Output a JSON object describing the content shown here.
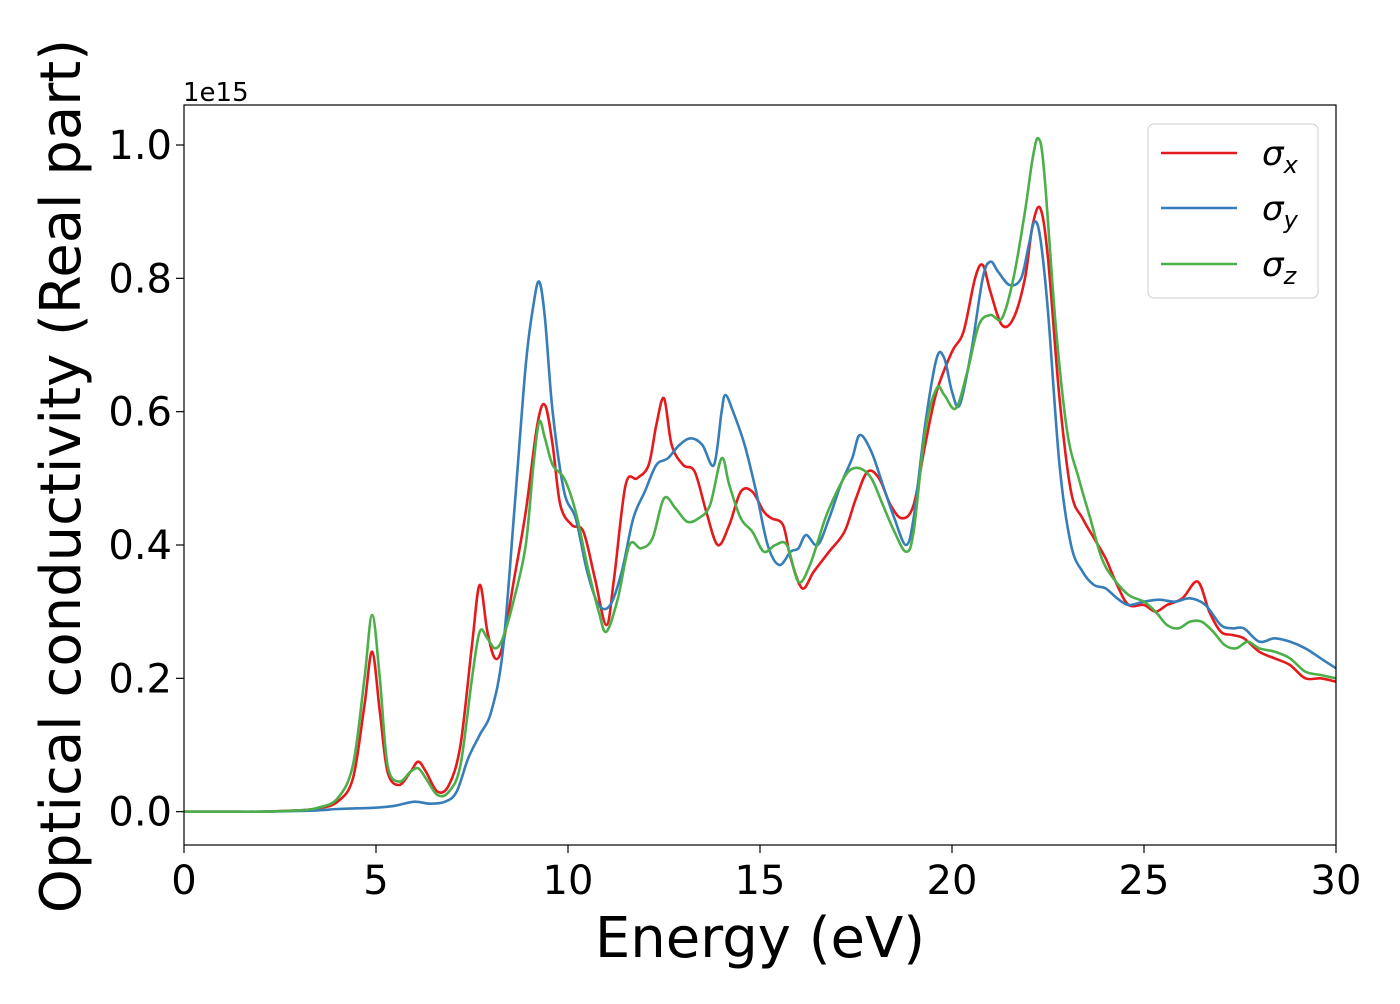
{
  "chart_data": {
    "type": "line",
    "xlabel": "Energy (eV)",
    "ylabel": "Optical conductivity (Real part)",
    "offset_text": "1e15",
    "xlim": [
      0,
      30
    ],
    "ylim": [
      -0.05,
      1.06
    ],
    "x_ticks": [
      {
        "value": 0,
        "label": "0"
      },
      {
        "value": 5,
        "label": "5"
      },
      {
        "value": 10,
        "label": "10"
      },
      {
        "value": 15,
        "label": "15"
      },
      {
        "value": 20,
        "label": "20"
      },
      {
        "value": 25,
        "label": "25"
      },
      {
        "value": 30,
        "label": "30"
      }
    ],
    "y_ticks": [
      {
        "value": 0.0,
        "label": "0.0"
      },
      {
        "value": 0.2,
        "label": "0.2"
      },
      {
        "value": 0.4,
        "label": "0.4"
      },
      {
        "value": 0.6,
        "label": "0.6"
      },
      {
        "value": 0.8,
        "label": "0.8"
      },
      {
        "value": 1.0,
        "label": "1.0"
      }
    ],
    "grid": false,
    "legend_position": "top-right",
    "series": [
      {
        "name": "σx",
        "legend_symbol": "σ",
        "legend_subscript": "x",
        "color": "#e41a1c",
        "points": [
          [
            0,
            0.0
          ],
          [
            1,
            0.0
          ],
          [
            2,
            0.0
          ],
          [
            3,
            0.002
          ],
          [
            3.5,
            0.005
          ],
          [
            4,
            0.015
          ],
          [
            4.4,
            0.05
          ],
          [
            4.7,
            0.16
          ],
          [
            4.9,
            0.24
          ],
          [
            5.1,
            0.15
          ],
          [
            5.3,
            0.06
          ],
          [
            5.6,
            0.04
          ],
          [
            5.9,
            0.06
          ],
          [
            6.1,
            0.075
          ],
          [
            6.3,
            0.06
          ],
          [
            6.6,
            0.03
          ],
          [
            6.9,
            0.04
          ],
          [
            7.2,
            0.1
          ],
          [
            7.5,
            0.25
          ],
          [
            7.7,
            0.34
          ],
          [
            7.9,
            0.27
          ],
          [
            8.1,
            0.23
          ],
          [
            8.3,
            0.25
          ],
          [
            8.6,
            0.35
          ],
          [
            8.9,
            0.45
          ],
          [
            9.2,
            0.58
          ],
          [
            9.4,
            0.61
          ],
          [
            9.6,
            0.55
          ],
          [
            9.8,
            0.46
          ],
          [
            10.1,
            0.43
          ],
          [
            10.4,
            0.42
          ],
          [
            10.7,
            0.35
          ],
          [
            11.0,
            0.28
          ],
          [
            11.2,
            0.35
          ],
          [
            11.5,
            0.49
          ],
          [
            11.8,
            0.5
          ],
          [
            12.1,
            0.52
          ],
          [
            12.3,
            0.58
          ],
          [
            12.5,
            0.62
          ],
          [
            12.7,
            0.55
          ],
          [
            13.0,
            0.52
          ],
          [
            13.3,
            0.51
          ],
          [
            13.6,
            0.45
          ],
          [
            13.9,
            0.4
          ],
          [
            14.2,
            0.43
          ],
          [
            14.5,
            0.48
          ],
          [
            14.8,
            0.48
          ],
          [
            15.1,
            0.45
          ],
          [
            15.3,
            0.44
          ],
          [
            15.6,
            0.43
          ],
          [
            15.8,
            0.38
          ],
          [
            16.1,
            0.335
          ],
          [
            16.4,
            0.36
          ],
          [
            16.8,
            0.39
          ],
          [
            17.2,
            0.42
          ],
          [
            17.5,
            0.47
          ],
          [
            17.8,
            0.51
          ],
          [
            18.1,
            0.5
          ],
          [
            18.4,
            0.46
          ],
          [
            18.7,
            0.44
          ],
          [
            19.0,
            0.46
          ],
          [
            19.3,
            0.55
          ],
          [
            19.6,
            0.63
          ],
          [
            20.0,
            0.69
          ],
          [
            20.3,
            0.72
          ],
          [
            20.6,
            0.8
          ],
          [
            20.8,
            0.82
          ],
          [
            21.0,
            0.78
          ],
          [
            21.3,
            0.73
          ],
          [
            21.6,
            0.74
          ],
          [
            21.9,
            0.8
          ],
          [
            22.1,
            0.88
          ],
          [
            22.3,
            0.905
          ],
          [
            22.5,
            0.83
          ],
          [
            22.8,
            0.62
          ],
          [
            23.1,
            0.48
          ],
          [
            23.4,
            0.44
          ],
          [
            23.7,
            0.41
          ],
          [
            24.0,
            0.38
          ],
          [
            24.3,
            0.34
          ],
          [
            24.6,
            0.31
          ],
          [
            25.0,
            0.31
          ],
          [
            25.3,
            0.3
          ],
          [
            25.6,
            0.31
          ],
          [
            26.0,
            0.32
          ],
          [
            26.4,
            0.345
          ],
          [
            26.7,
            0.3
          ],
          [
            27.0,
            0.27
          ],
          [
            27.3,
            0.265
          ],
          [
            27.6,
            0.26
          ],
          [
            28.0,
            0.24
          ],
          [
            28.4,
            0.23
          ],
          [
            28.8,
            0.22
          ],
          [
            29.2,
            0.2
          ],
          [
            29.6,
            0.2
          ],
          [
            30.0,
            0.195
          ]
        ]
      },
      {
        "name": "σy",
        "legend_symbol": "σ",
        "legend_subscript": "y",
        "color": "#377eb8",
        "points": [
          [
            0,
            0.0
          ],
          [
            1,
            0.0
          ],
          [
            2,
            0.0
          ],
          [
            3,
            0.001
          ],
          [
            3.5,
            0.002
          ],
          [
            4,
            0.004
          ],
          [
            4.5,
            0.005
          ],
          [
            5.0,
            0.006
          ],
          [
            5.5,
            0.009
          ],
          [
            6.0,
            0.015
          ],
          [
            6.4,
            0.012
          ],
          [
            6.8,
            0.015
          ],
          [
            7.1,
            0.03
          ],
          [
            7.4,
            0.08
          ],
          [
            7.7,
            0.115
          ],
          [
            8.0,
            0.15
          ],
          [
            8.3,
            0.24
          ],
          [
            8.6,
            0.45
          ],
          [
            8.9,
            0.67
          ],
          [
            9.1,
            0.76
          ],
          [
            9.25,
            0.795
          ],
          [
            9.4,
            0.74
          ],
          [
            9.6,
            0.6
          ],
          [
            9.9,
            0.48
          ],
          [
            10.2,
            0.44
          ],
          [
            10.5,
            0.36
          ],
          [
            10.8,
            0.31
          ],
          [
            11.1,
            0.31
          ],
          [
            11.4,
            0.36
          ],
          [
            11.7,
            0.44
          ],
          [
            12.0,
            0.48
          ],
          [
            12.3,
            0.52
          ],
          [
            12.6,
            0.53
          ],
          [
            12.9,
            0.55
          ],
          [
            13.2,
            0.56
          ],
          [
            13.5,
            0.55
          ],
          [
            13.8,
            0.52
          ],
          [
            14.0,
            0.6
          ],
          [
            14.1,
            0.625
          ],
          [
            14.3,
            0.6
          ],
          [
            14.6,
            0.55
          ],
          [
            14.9,
            0.48
          ],
          [
            15.2,
            0.4
          ],
          [
            15.5,
            0.37
          ],
          [
            15.8,
            0.39
          ],
          [
            16.0,
            0.395
          ],
          [
            16.2,
            0.415
          ],
          [
            16.5,
            0.4
          ],
          [
            16.8,
            0.44
          ],
          [
            17.1,
            0.49
          ],
          [
            17.4,
            0.53
          ],
          [
            17.6,
            0.565
          ],
          [
            17.9,
            0.54
          ],
          [
            18.2,
            0.49
          ],
          [
            18.5,
            0.44
          ],
          [
            18.8,
            0.4
          ],
          [
            19.0,
            0.44
          ],
          [
            19.3,
            0.58
          ],
          [
            19.6,
            0.68
          ],
          [
            19.8,
            0.68
          ],
          [
            20.0,
            0.63
          ],
          [
            20.2,
            0.61
          ],
          [
            20.5,
            0.69
          ],
          [
            20.8,
            0.8
          ],
          [
            21.0,
            0.825
          ],
          [
            21.2,
            0.81
          ],
          [
            21.5,
            0.79
          ],
          [
            21.8,
            0.8
          ],
          [
            22.0,
            0.85
          ],
          [
            22.15,
            0.885
          ],
          [
            22.3,
            0.86
          ],
          [
            22.5,
            0.75
          ],
          [
            22.8,
            0.52
          ],
          [
            23.1,
            0.4
          ],
          [
            23.4,
            0.36
          ],
          [
            23.7,
            0.34
          ],
          [
            24.0,
            0.335
          ],
          [
            24.3,
            0.32
          ],
          [
            24.6,
            0.31
          ],
          [
            25.0,
            0.315
          ],
          [
            25.4,
            0.318
          ],
          [
            25.8,
            0.315
          ],
          [
            26.2,
            0.32
          ],
          [
            26.6,
            0.31
          ],
          [
            27.0,
            0.28
          ],
          [
            27.3,
            0.275
          ],
          [
            27.6,
            0.275
          ],
          [
            28.0,
            0.255
          ],
          [
            28.4,
            0.26
          ],
          [
            28.8,
            0.255
          ],
          [
            29.2,
            0.245
          ],
          [
            29.6,
            0.23
          ],
          [
            30.0,
            0.215
          ]
        ]
      },
      {
        "name": "σz",
        "legend_symbol": "σ",
        "legend_subscript": "z",
        "color": "#4daf4a",
        "points": [
          [
            0,
            0.0
          ],
          [
            1,
            0.0
          ],
          [
            2,
            0.0
          ],
          [
            3,
            0.002
          ],
          [
            3.5,
            0.006
          ],
          [
            4,
            0.02
          ],
          [
            4.4,
            0.07
          ],
          [
            4.7,
            0.2
          ],
          [
            4.9,
            0.295
          ],
          [
            5.1,
            0.2
          ],
          [
            5.3,
            0.07
          ],
          [
            5.6,
            0.045
          ],
          [
            5.9,
            0.06
          ],
          [
            6.1,
            0.065
          ],
          [
            6.3,
            0.05
          ],
          [
            6.6,
            0.025
          ],
          [
            6.9,
            0.03
          ],
          [
            7.2,
            0.07
          ],
          [
            7.5,
            0.2
          ],
          [
            7.7,
            0.27
          ],
          [
            7.9,
            0.26
          ],
          [
            8.1,
            0.245
          ],
          [
            8.3,
            0.26
          ],
          [
            8.6,
            0.32
          ],
          [
            8.9,
            0.4
          ],
          [
            9.1,
            0.52
          ],
          [
            9.25,
            0.585
          ],
          [
            9.4,
            0.56
          ],
          [
            9.6,
            0.52
          ],
          [
            9.9,
            0.5
          ],
          [
            10.2,
            0.45
          ],
          [
            10.5,
            0.37
          ],
          [
            10.8,
            0.3
          ],
          [
            11.0,
            0.27
          ],
          [
            11.3,
            0.32
          ],
          [
            11.6,
            0.4
          ],
          [
            11.9,
            0.395
          ],
          [
            12.2,
            0.41
          ],
          [
            12.5,
            0.47
          ],
          [
            12.8,
            0.455
          ],
          [
            13.1,
            0.435
          ],
          [
            13.4,
            0.44
          ],
          [
            13.7,
            0.46
          ],
          [
            14.0,
            0.53
          ],
          [
            14.2,
            0.49
          ],
          [
            14.5,
            0.44
          ],
          [
            14.8,
            0.42
          ],
          [
            15.1,
            0.39
          ],
          [
            15.4,
            0.4
          ],
          [
            15.7,
            0.4
          ],
          [
            16.0,
            0.345
          ],
          [
            16.3,
            0.37
          ],
          [
            16.7,
            0.44
          ],
          [
            17.0,
            0.48
          ],
          [
            17.3,
            0.51
          ],
          [
            17.6,
            0.515
          ],
          [
            17.9,
            0.5
          ],
          [
            18.2,
            0.46
          ],
          [
            18.5,
            0.42
          ],
          [
            18.8,
            0.39
          ],
          [
            19.0,
            0.42
          ],
          [
            19.3,
            0.57
          ],
          [
            19.6,
            0.635
          ],
          [
            19.8,
            0.625
          ],
          [
            20.1,
            0.605
          ],
          [
            20.4,
            0.66
          ],
          [
            20.7,
            0.73
          ],
          [
            21.0,
            0.745
          ],
          [
            21.3,
            0.74
          ],
          [
            21.6,
            0.8
          ],
          [
            21.9,
            0.9
          ],
          [
            22.1,
            0.98
          ],
          [
            22.25,
            1.01
          ],
          [
            22.4,
            0.96
          ],
          [
            22.7,
            0.73
          ],
          [
            23.0,
            0.57
          ],
          [
            23.3,
            0.5
          ],
          [
            23.6,
            0.44
          ],
          [
            23.9,
            0.38
          ],
          [
            24.2,
            0.35
          ],
          [
            24.6,
            0.325
          ],
          [
            25.0,
            0.315
          ],
          [
            25.3,
            0.3
          ],
          [
            25.6,
            0.28
          ],
          [
            25.9,
            0.275
          ],
          [
            26.2,
            0.285
          ],
          [
            26.5,
            0.285
          ],
          [
            26.8,
            0.27
          ],
          [
            27.1,
            0.25
          ],
          [
            27.4,
            0.245
          ],
          [
            27.7,
            0.255
          ],
          [
            28.0,
            0.245
          ],
          [
            28.4,
            0.24
          ],
          [
            28.8,
            0.23
          ],
          [
            29.2,
            0.21
          ],
          [
            29.6,
            0.205
          ],
          [
            30.0,
            0.2
          ]
        ]
      }
    ]
  }
}
